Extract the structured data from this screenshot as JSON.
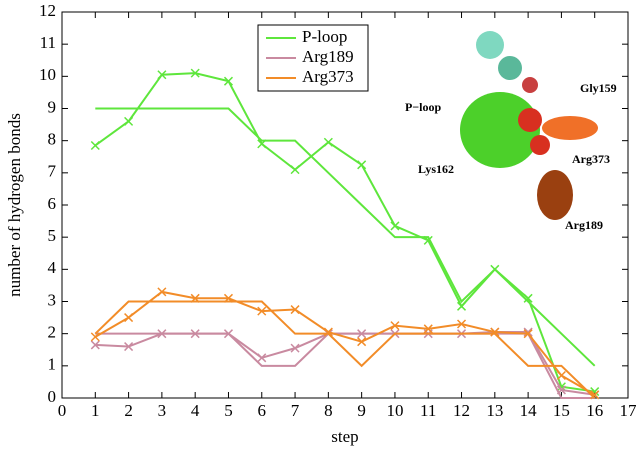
{
  "chart_data": {
    "type": "line",
    "xlabel": "step",
    "ylabel": "number of hydrogen bonds",
    "x": [
      1,
      2,
      3,
      4,
      5,
      6,
      7,
      8,
      9,
      10,
      11,
      12,
      13,
      14,
      15,
      16
    ],
    "xlim": [
      0,
      17
    ],
    "ylim": [
      0,
      12
    ],
    "xticks": [
      0,
      1,
      2,
      3,
      4,
      5,
      6,
      7,
      8,
      9,
      10,
      11,
      12,
      13,
      14,
      15,
      16,
      17
    ],
    "yticks": [
      0,
      1,
      2,
      3,
      4,
      5,
      6,
      7,
      8,
      9,
      10,
      11,
      12
    ],
    "legend": "upper center",
    "series": [
      {
        "name": "P-loop",
        "color": "#5ee63c",
        "values": [
          7.85,
          8.6,
          10.05,
          10.1,
          9.85,
          7.9,
          7.1,
          7.95,
          7.25,
          5.35,
          4.9,
          2.85,
          4.0,
          3.1,
          0.35,
          0.2
        ],
        "line_values": [
          9,
          9,
          9,
          9,
          9,
          8,
          8,
          7,
          6,
          5,
          5,
          3,
          4,
          3,
          2,
          1
        ]
      },
      {
        "name": "Arg189",
        "color": "#c98aa0",
        "values": [
          1.65,
          1.6,
          2.0,
          2.0,
          2.0,
          1.25,
          1.55,
          2.0,
          2.0,
          2.0,
          2.0,
          2.0,
          2.05,
          2.05,
          0.25,
          0.1
        ],
        "line_values": [
          2,
          2,
          2,
          2,
          2,
          1,
          1,
          2,
          2,
          2,
          2,
          2,
          2,
          2,
          0,
          0
        ]
      },
      {
        "name": "Arg373",
        "color": "#f28c28",
        "values": [
          1.9,
          2.5,
          3.3,
          3.1,
          3.1,
          2.7,
          2.75,
          2.05,
          1.75,
          2.25,
          2.15,
          2.3,
          2.05,
          2.0,
          0.7,
          0.1
        ],
        "line_values": [
          2,
          3,
          3,
          3,
          3,
          3,
          2,
          2,
          1,
          2,
          2,
          2,
          2,
          1,
          1,
          0
        ]
      }
    ],
    "annotations": [
      "P−loop",
      "Gly159",
      "Lys162",
      "Arg373",
      "Arg189"
    ]
  }
}
